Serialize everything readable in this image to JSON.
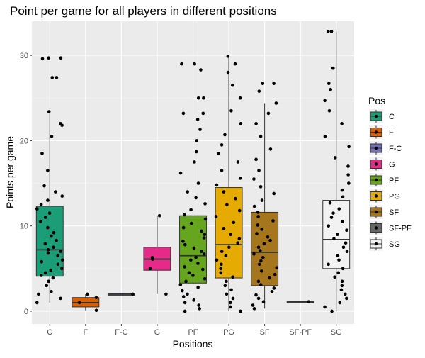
{
  "chart_data": {
    "type": "boxplot",
    "title": "Point per game for all players in different positions",
    "xlabel": "Positions",
    "ylabel": "Points per game",
    "ylim": [
      -1.5,
      34
    ],
    "yticks": [
      0,
      10,
      20,
      30
    ],
    "categories": [
      "C",
      "F",
      "F-C",
      "G",
      "PF",
      "PG",
      "SF",
      "SF-PF",
      "SG"
    ],
    "legend": {
      "title": "Pos",
      "position": "right"
    },
    "grid": true,
    "boxes": [
      {
        "name": "C",
        "color": "#1B9E77",
        "min": 1.0,
        "q1": 4.1,
        "median": 7.2,
        "q3": 12.3,
        "max": 23.4,
        "outliers": [
          27.4,
          27.4,
          29.7,
          29.7,
          29.6
        ],
        "points": [
          1.0,
          1.5,
          2.0,
          2.3,
          3.0,
          3.5,
          3.9,
          4.2,
          4.5,
          4.8,
          5.0,
          5.5,
          5.8,
          6.0,
          6.5,
          6.8,
          7.0,
          7.2,
          7.5,
          7.9,
          8.3,
          8.8,
          9.2,
          9.8,
          10.5,
          11.0,
          11.5,
          12.0,
          12.5,
          13.0,
          13.5,
          14.0,
          14.7,
          16.5,
          18.5,
          20.5,
          21.8,
          22.0,
          23.4
        ]
      },
      {
        "name": "F",
        "color": "#D95F02",
        "min": 0.1,
        "q1": 0.5,
        "median": 1.0,
        "q3": 1.6,
        "max": 2.0,
        "outliers": [],
        "points": [
          0.1,
          1.0,
          1.6,
          2.0
        ]
      },
      {
        "name": "F-C",
        "color": "#7570B3",
        "min": 2.0,
        "q1": 2.0,
        "median": 2.0,
        "q3": 2.0,
        "max": 2.0,
        "outliers": [],
        "points": [
          2.0
        ]
      },
      {
        "name": "G",
        "color": "#E7298A",
        "min": 2.0,
        "q1": 4.8,
        "median": 6.1,
        "q3": 7.5,
        "max": 11.2,
        "outliers": [],
        "points": [
          2.0,
          5.0,
          6.1,
          6.3,
          11.2
        ]
      },
      {
        "name": "PF",
        "color": "#66A61E",
        "min": 0.0,
        "q1": 3.3,
        "median": 6.5,
        "q3": 11.2,
        "max": 22.5,
        "outliers": [
          23.2,
          23.2,
          25.0,
          25.0,
          28.3,
          29.0,
          29.0
        ],
        "points": [
          0.0,
          0.3,
          0.7,
          1.0,
          1.3,
          1.7,
          2.0,
          2.4,
          2.8,
          3.1,
          3.5,
          3.8,
          4.2,
          4.5,
          4.9,
          5.2,
          5.6,
          6.0,
          6.3,
          6.7,
          7.0,
          7.4,
          7.8,
          8.2,
          8.6,
          9.0,
          9.4,
          9.8,
          10.3,
          10.8,
          11.3,
          11.9,
          12.6,
          13.3,
          14.0,
          15.0,
          16.2,
          17.5,
          18.7,
          20.0,
          21.3,
          22.5
        ]
      },
      {
        "name": "PG",
        "color": "#E6AB02",
        "min": 0.0,
        "q1": 3.9,
        "median": 7.8,
        "q3": 14.5,
        "max": 29.9,
        "outliers": [],
        "points": [
          0.0,
          0.5,
          1.0,
          1.5,
          2.0,
          2.5,
          3.0,
          3.5,
          4.0,
          4.5,
          5.0,
          5.5,
          6.0,
          6.5,
          7.0,
          7.5,
          8.0,
          8.5,
          9.0,
          9.7,
          10.4,
          11.1,
          11.8,
          12.5,
          13.2,
          14.0,
          14.8,
          15.6,
          16.5,
          17.5,
          18.5,
          19.5,
          20.7,
          22.0,
          23.5,
          25.0,
          26.5,
          28.0,
          29.0,
          29.9
        ]
      },
      {
        "name": "SF",
        "color": "#A6761D",
        "min": 0.3,
        "q1": 3.0,
        "median": 6.9,
        "q3": 11.6,
        "max": 24.4,
        "outliers": [
          25.8,
          26.7,
          26.7
        ],
        "points": [
          0.3,
          0.7,
          1.1,
          1.5,
          1.9,
          2.3,
          2.7,
          3.1,
          3.5,
          3.9,
          4.3,
          4.7,
          5.1,
          5.5,
          5.9,
          6.3,
          6.7,
          7.1,
          7.5,
          7.9,
          8.3,
          8.7,
          9.1,
          9.6,
          10.1,
          10.6,
          11.1,
          11.6,
          12.3,
          13.0,
          13.8,
          14.6,
          15.5,
          16.5,
          17.8,
          19.0,
          20.5,
          22.0,
          23.2,
          24.4
        ]
      },
      {
        "name": "SF-PF",
        "color": "#666666",
        "min": 1.1,
        "q1": 1.1,
        "median": 1.1,
        "q3": 1.1,
        "max": 1.1,
        "outliers": [],
        "points": [
          1.1
        ]
      },
      {
        "name": "SG",
        "color": "#F2F2F2",
        "min": 0.0,
        "q1": 5.0,
        "median": 8.4,
        "q3": 13.0,
        "max": 32.8,
        "outliers": [],
        "points": [
          0.0,
          0.5,
          1.0,
          1.5,
          2.0,
          2.5,
          3.0,
          3.5,
          4.0,
          4.5,
          5.0,
          5.5,
          6.0,
          6.5,
          7.0,
          7.5,
          8.0,
          8.5,
          9.0,
          9.5,
          10.0,
          10.5,
          11.0,
          11.5,
          12.0,
          12.7,
          13.4,
          14.2,
          15.0,
          16.0,
          17.0,
          18.0,
          19.3,
          20.5,
          22.0,
          23.5,
          24.7,
          26.0,
          26.7,
          28.5,
          28.5,
          32.8,
          32.8
        ]
      }
    ]
  }
}
